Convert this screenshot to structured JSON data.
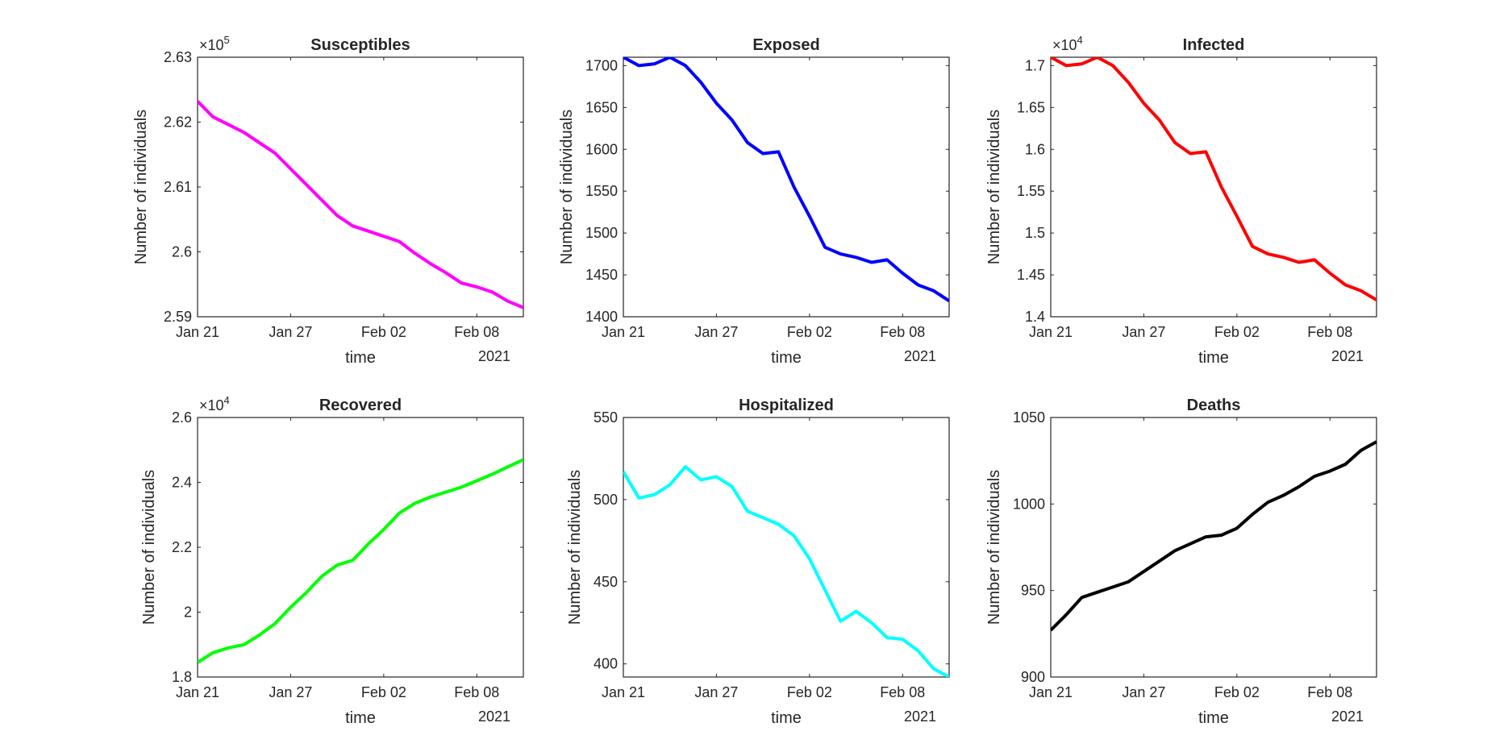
{
  "figure": {
    "ylabel": "Number of individuals",
    "xlabel": "time",
    "year_label": "2021",
    "x_tick_labels": [
      "Jan 21",
      "Jan 27",
      "Feb 02",
      "Feb 08"
    ]
  },
  "chart_data": [
    {
      "type": "line",
      "title": "Susceptibles",
      "color": "#ff00ff",
      "exponent_label": "×10",
      "exponent": "5",
      "ylim": [
        2.59,
        2.63
      ],
      "yticks": [
        2.59,
        2.6,
        2.61,
        2.62,
        2.63
      ],
      "ytick_labels": [
        "2.59",
        "2.6",
        "2.61",
        "2.62",
        "2.63"
      ],
      "xlabel": "time",
      "ylabel": "Number of individuals",
      "x": [
        "Jan 21",
        "Jan 22",
        "Jan 23",
        "Jan 24",
        "Jan 25",
        "Jan 26",
        "Jan 27",
        "Jan 28",
        "Jan 29",
        "Jan 30",
        "Jan 31",
        "Feb 01",
        "Feb 02",
        "Feb 03",
        "Feb 04",
        "Feb 05",
        "Feb 06",
        "Feb 07",
        "Feb 08",
        "Feb 09",
        "Feb 10",
        "Feb 11"
      ],
      "values": [
        2.6232,
        2.6208,
        2.6196,
        2.6184,
        2.6168,
        2.6152,
        2.6128,
        2.6104,
        2.608,
        2.6056,
        2.604,
        2.6032,
        2.6024,
        2.6016,
        2.5998,
        2.5982,
        2.5968,
        2.5952,
        2.5946,
        2.5938,
        2.5924,
        2.5914
      ]
    },
    {
      "type": "line",
      "title": "Exposed",
      "color": "#0000ff",
      "exponent_label": "",
      "exponent": "",
      "ylim": [
        1400,
        1710
      ],
      "yticks": [
        1400,
        1450,
        1500,
        1550,
        1600,
        1650,
        1700
      ],
      "ytick_labels": [
        "1400",
        "1450",
        "1500",
        "1550",
        "1600",
        "1650",
        "1700"
      ],
      "xlabel": "time",
      "ylabel": "Number of individuals",
      "x": [
        "Jan 21",
        "Jan 22",
        "Jan 23",
        "Jan 24",
        "Jan 25",
        "Jan 26",
        "Jan 27",
        "Jan 28",
        "Jan 29",
        "Jan 30",
        "Jan 31",
        "Feb 01",
        "Feb 02",
        "Feb 03",
        "Feb 04",
        "Feb 05",
        "Feb 06",
        "Feb 07",
        "Feb 08",
        "Feb 09",
        "Feb 10",
        "Feb 11"
      ],
      "values": [
        1710,
        1700,
        1702,
        1710,
        1700,
        1680,
        1655,
        1635,
        1608,
        1595,
        1597,
        1555,
        1520,
        1483,
        1475,
        1471,
        1465,
        1468,
        1452,
        1438,
        1431,
        1419
      ]
    },
    {
      "type": "line",
      "title": "Infected",
      "color": "#ff0000",
      "exponent_label": "×10",
      "exponent": "4",
      "ylim": [
        1.4,
        1.71
      ],
      "yticks": [
        1.4,
        1.45,
        1.5,
        1.55,
        1.6,
        1.65,
        1.7
      ],
      "ytick_labels": [
        "1.4",
        "1.45",
        "1.5",
        "1.55",
        "1.6",
        "1.65",
        "1.7"
      ],
      "xlabel": "time",
      "ylabel": "Number of individuals",
      "x": [
        "Jan 21",
        "Jan 22",
        "Jan 23",
        "Jan 24",
        "Jan 25",
        "Jan 26",
        "Jan 27",
        "Jan 28",
        "Jan 29",
        "Jan 30",
        "Jan 31",
        "Feb 01",
        "Feb 02",
        "Feb 03",
        "Feb 04",
        "Feb 05",
        "Feb 06",
        "Feb 07",
        "Feb 08",
        "Feb 09",
        "Feb 10",
        "Feb 11"
      ],
      "values": [
        1.71,
        1.7,
        1.702,
        1.71,
        1.7,
        1.68,
        1.655,
        1.635,
        1.608,
        1.595,
        1.597,
        1.555,
        1.52,
        1.484,
        1.475,
        1.471,
        1.465,
        1.468,
        1.452,
        1.438,
        1.431,
        1.42
      ]
    },
    {
      "type": "line",
      "title": "Recovered",
      "color": "#00ff00",
      "exponent_label": "×10",
      "exponent": "4",
      "ylim": [
        1.8,
        2.6
      ],
      "yticks": [
        1.8,
        2.0,
        2.2,
        2.4,
        2.6
      ],
      "ytick_labels": [
        "1.8",
        "2",
        "2.2",
        "2.4",
        "2.6"
      ],
      "xlabel": "time",
      "ylabel": "Number of individuals",
      "x": [
        "Jan 21",
        "Jan 22",
        "Jan 23",
        "Jan 24",
        "Jan 25",
        "Jan 26",
        "Jan 27",
        "Jan 28",
        "Jan 29",
        "Jan 30",
        "Jan 31",
        "Feb 01",
        "Feb 02",
        "Feb 03",
        "Feb 04",
        "Feb 05",
        "Feb 06",
        "Feb 07",
        "Feb 08",
        "Feb 09",
        "Feb 10",
        "Feb 11"
      ],
      "values": [
        1.845,
        1.875,
        1.89,
        1.9,
        1.93,
        1.965,
        2.015,
        2.06,
        2.11,
        2.145,
        2.16,
        2.21,
        2.255,
        2.305,
        2.335,
        2.355,
        2.37,
        2.385,
        2.405,
        2.425,
        2.448,
        2.47
      ]
    },
    {
      "type": "line",
      "title": "Hospitalized",
      "color": "#00ffff",
      "exponent_label": "",
      "exponent": "",
      "ylim": [
        392,
        550
      ],
      "yticks": [
        400,
        450,
        500,
        550
      ],
      "ytick_labels": [
        "400",
        "450",
        "500",
        "550"
      ],
      "xlabel": "time",
      "ylabel": "Number of individuals",
      "x": [
        "Jan 21",
        "Jan 22",
        "Jan 23",
        "Jan 24",
        "Jan 25",
        "Jan 26",
        "Jan 27",
        "Jan 28",
        "Jan 29",
        "Jan 30",
        "Jan 31",
        "Feb 01",
        "Feb 02",
        "Feb 03",
        "Feb 04",
        "Feb 05",
        "Feb 06",
        "Feb 07",
        "Feb 08",
        "Feb 09",
        "Feb 10",
        "Feb 11"
      ],
      "values": [
        517,
        501,
        503,
        509,
        520,
        512,
        514,
        508,
        493,
        489,
        485,
        478,
        464,
        445,
        426,
        432,
        425,
        416,
        415,
        408,
        397,
        392
      ]
    },
    {
      "type": "line",
      "title": "Deaths",
      "color": "#000000",
      "exponent_label": "",
      "exponent": "",
      "ylim": [
        900,
        1050
      ],
      "yticks": [
        900,
        950,
        1000,
        1050
      ],
      "ytick_labels": [
        "900",
        "950",
        "1000",
        "1050"
      ],
      "xlabel": "time",
      "ylabel": "Number of individuals",
      "x": [
        "Jan 21",
        "Jan 22",
        "Jan 23",
        "Jan 24",
        "Jan 25",
        "Jan 26",
        "Jan 27",
        "Jan 28",
        "Jan 29",
        "Jan 30",
        "Jan 31",
        "Feb 01",
        "Feb 02",
        "Feb 03",
        "Feb 04",
        "Feb 05",
        "Feb 06",
        "Feb 07",
        "Feb 08",
        "Feb 09",
        "Feb 10",
        "Feb 11"
      ],
      "values": [
        927,
        936,
        946,
        949,
        952,
        955,
        961,
        967,
        973,
        977,
        981,
        982,
        986,
        994,
        1001,
        1005,
        1010,
        1016,
        1019,
        1023,
        1031,
        1036
      ]
    }
  ]
}
